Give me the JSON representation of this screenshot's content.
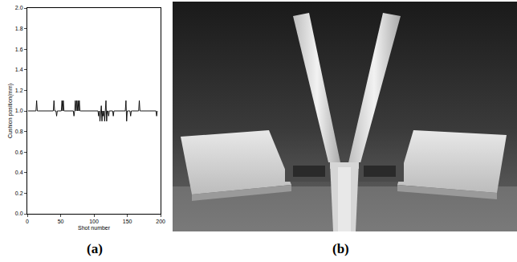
{
  "chart_data": {
    "type": "line",
    "x_label": "Shot number",
    "y_label": "Cushion position(mm)",
    "x": [
      1,
      2,
      3,
      4,
      5,
      6,
      7,
      8,
      9,
      10,
      11,
      12,
      13,
      14,
      15,
      16,
      17,
      18,
      19,
      20,
      21,
      22,
      23,
      24,
      25,
      26,
      27,
      28,
      29,
      30,
      31,
      32,
      33,
      34,
      35,
      36,
      37,
      38,
      39,
      40,
      41,
      42,
      43,
      44,
      45,
      46,
      47,
      48,
      49,
      50,
      51,
      52,
      53,
      54,
      55,
      56,
      57,
      58,
      59,
      60,
      61,
      62,
      63,
      64,
      65,
      66,
      67,
      68,
      69,
      70,
      71,
      72,
      73,
      74,
      75,
      76,
      77,
      78,
      79,
      80,
      81,
      82,
      83,
      84,
      85,
      86,
      87,
      88,
      89,
      90,
      91,
      92,
      93,
      94,
      95,
      96,
      97,
      98,
      99,
      100,
      101,
      102,
      103,
      104,
      105,
      106,
      107,
      108,
      109,
      110,
      111,
      112,
      113,
      114,
      115,
      116,
      117,
      118,
      119,
      120,
      121,
      122,
      123,
      124,
      125,
      126,
      127,
      128,
      129,
      130,
      131,
      132,
      133,
      134,
      135,
      136,
      137,
      138,
      139,
      140,
      141,
      142,
      143,
      144,
      145,
      146,
      147,
      148,
      149,
      150,
      151,
      152,
      153,
      154,
      155,
      156,
      157,
      158,
      159,
      160,
      161,
      162,
      163,
      164,
      165,
      166,
      167,
      168,
      169,
      170,
      171,
      172,
      173,
      174,
      175,
      176,
      177,
      178,
      179,
      180,
      181,
      182,
      183,
      184,
      185,
      186,
      187,
      188,
      189,
      190,
      191,
      192,
      193,
      194,
      195
    ],
    "values": [
      1,
      1,
      1,
      1,
      1,
      1,
      1,
      1,
      1,
      1,
      1,
      1,
      1,
      1.1,
      1,
      1,
      1,
      1,
      1,
      1,
      1,
      1,
      1,
      1,
      1,
      1,
      1,
      1,
      1,
      1,
      1,
      1,
      1,
      1,
      1,
      1,
      1,
      1,
      1,
      1.1,
      1,
      1,
      1,
      0.95,
      1,
      1,
      1,
      1,
      1,
      1,
      1,
      1.1,
      1,
      1.1,
      1,
      1,
      1,
      1,
      1,
      1,
      1,
      1,
      1,
      1,
      1,
      1,
      1,
      1,
      1,
      0.95,
      1,
      1.1,
      1,
      1.1,
      1,
      1.1,
      1,
      1.1,
      1,
      1,
      1,
      1,
      1,
      1,
      1,
      1,
      1,
      1,
      1,
      1,
      1,
      1,
      1,
      1,
      1,
      1,
      1,
      1,
      1,
      1,
      1,
      1,
      1,
      1,
      1,
      1,
      0.95,
      1,
      0.9,
      1,
      1.05,
      0.9,
      1,
      0.95,
      1,
      0.9,
      1,
      1.1,
      0.9,
      1,
      1,
      0.95,
      1,
      1,
      1,
      1,
      1,
      1,
      0.95,
      1,
      1,
      1,
      1,
      1,
      1,
      1,
      1,
      1,
      1,
      1,
      1,
      1,
      1,
      1,
      1,
      1,
      1,
      1.1,
      0.9,
      1,
      1,
      1,
      1,
      1,
      0.95,
      1,
      1,
      1,
      1,
      1,
      1,
      1,
      1,
      1,
      1,
      1,
      1,
      1.1,
      1,
      1,
      1,
      1,
      1,
      1,
      1,
      1,
      1,
      1,
      1,
      1,
      1,
      1,
      1,
      1,
      1,
      1,
      1,
      1,
      1,
      1,
      1,
      1,
      1,
      0.95,
      1
    ],
    "color": "#000000",
    "line_style": "solid",
    "marker": "none",
    "grid": false,
    "xlim": [
      0,
      200
    ],
    "xticks": [
      0,
      50,
      100,
      150,
      200
    ],
    "ylim": [
      0,
      2
    ],
    "yticks": [
      {
        "value": 0,
        "label": "0.0"
      },
      {
        "value": 0.2,
        "label": "0.2"
      },
      {
        "value": 0.4,
        "label": "0.4"
      },
      {
        "value": 0.6,
        "label": "0.6"
      },
      {
        "value": 0.8,
        "label": "0.8"
      },
      {
        "value": 1,
        "label": "1.0"
      },
      {
        "value": 1.2,
        "label": "1.2"
      },
      {
        "value": 1.4,
        "label": "1.4"
      },
      {
        "value": 1.6,
        "label": "1.6"
      },
      {
        "value": 1.8,
        "label": "1.8"
      },
      {
        "value": 2,
        "label": "2.0"
      }
    ]
  },
  "panel_labels": [
    "(a)",
    "(b)"
  ]
}
